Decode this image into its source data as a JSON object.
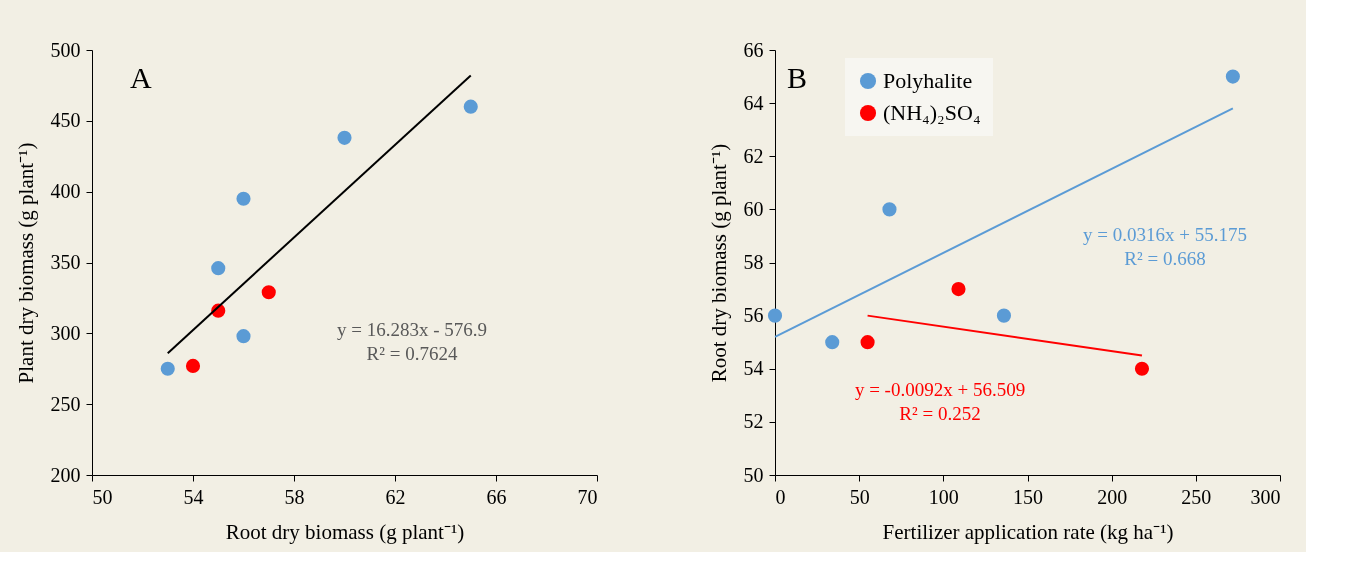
{
  "chart_data": [
    {
      "type": "scatter",
      "xlabel": "Root dry biomass (g plant⁻¹)",
      "ylabel": "Plant dry biomass (g plant⁻¹)",
      "xlim": [
        50,
        70
      ],
      "xticks": [
        50,
        54,
        58,
        62,
        66,
        70
      ],
      "ylim": [
        200,
        500
      ],
      "yticks": [
        200,
        250,
        300,
        350,
        400,
        450,
        500
      ],
      "grid": false,
      "legend": false,
      "marker": "circle",
      "series": [
        {
          "color": "#5b9bd5",
          "x": [
            53,
            55,
            56,
            56,
            60,
            65
          ],
          "values": [
            275,
            346,
            298,
            395,
            438,
            460
          ]
        },
        {
          "color": "#ff0000",
          "x": [
            54,
            55,
            57
          ],
          "values": [
            277,
            316,
            329
          ]
        },
        {
          "type": "line",
          "marker": "none",
          "color": "#000000",
          "x": [
            53,
            65
          ],
          "values": [
            286,
            482
          ]
        }
      ],
      "annotations": [
        "A",
        "y = 16.283x - 576.9",
        "R² = 0.7624"
      ]
    },
    {
      "type": "scatter",
      "xlabel": "Fertilizer application rate (kg ha⁻¹)",
      "ylabel": "Root dry biomass (g plant⁻¹)",
      "xlim": [
        0,
        300
      ],
      "xticks": [
        0,
        50,
        100,
        150,
        200,
        250,
        300
      ],
      "ylim": [
        50,
        66
      ],
      "yticks": [
        50,
        52,
        54,
        56,
        58,
        60,
        62,
        64,
        66
      ],
      "grid": false,
      "legend": "top left",
      "marker": "circle",
      "series": [
        {
          "name": "Polyhalite",
          "color": "#5b9bd5",
          "x": [
            0,
            34,
            68,
            136,
            272
          ],
          "values": [
            56,
            55,
            60,
            56,
            65
          ]
        },
        {
          "name": "(NH₄)₂SO₄",
          "color": "#ff0000",
          "x": [
            55,
            109,
            218
          ],
          "values": [
            55,
            57,
            54
          ]
        },
        {
          "type": "line",
          "marker": "none",
          "color": "#5b9bd5",
          "x": [
            0,
            272
          ],
          "values": [
            55.2,
            63.8
          ]
        },
        {
          "type": "line",
          "marker": "none",
          "color": "#ff0000",
          "x": [
            55,
            218
          ],
          "values": [
            56.0,
            54.5
          ]
        }
      ],
      "annotations": [
        "B",
        "y = 0.0316x + 55.175",
        "R² = 0.668",
        "y = -0.0092x + 56.509",
        "R² = 0.252"
      ]
    }
  ]
}
